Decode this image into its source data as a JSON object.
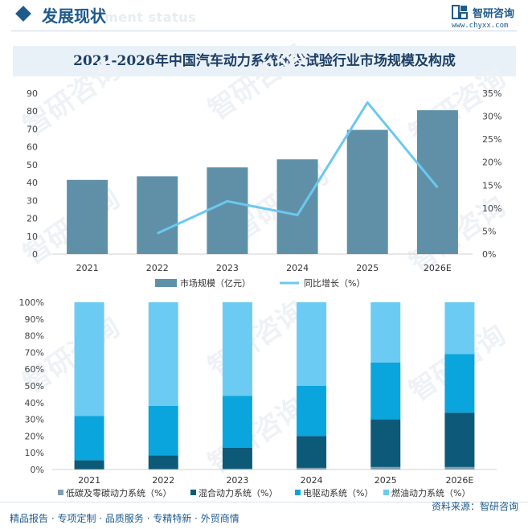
{
  "header": {
    "title": "发展现状",
    "ghost_subtitle": "ment status",
    "brand_name": "智研咨询",
    "brand_url": "www.chyxx.com"
  },
  "colors": {
    "bar": "#5f90a8",
    "line": "#6cc8ef",
    "low_carbon": "#7f9fb0",
    "hybrid": "#0d5a78",
    "electric": "#0aa5dc",
    "fuel": "#6ccbf2",
    "brand": "#1e5a8c"
  },
  "chart_data": [
    {
      "type": "bar",
      "title": "2021-2026年中国汽车动力系统研发试验行业市场规模及构成",
      "categories": [
        "2021",
        "2022",
        "2023",
        "2024",
        "2025",
        "2026E"
      ],
      "y_ticks": [
        "0",
        "10",
        "20",
        "30",
        "40",
        "50",
        "60",
        "70",
        "80",
        "90"
      ],
      "y2_ticks": [
        "0%",
        "5%",
        "10%",
        "15%",
        "20%",
        "25%",
        "30%",
        "35%"
      ],
      "ylim": [
        0,
        90
      ],
      "y2lim": [
        0,
        35
      ],
      "legend_position": "bottom",
      "series": [
        {
          "name": "市场规模（亿元）",
          "type": "bar",
          "values": [
            41.5,
            43.5,
            48.5,
            53,
            69.5,
            80.5
          ]
        },
        {
          "name": "同比增长（%）",
          "type": "line",
          "axis": "right",
          "values": [
            null,
            4.5,
            11.5,
            8.5,
            33,
            14.5
          ]
        }
      ]
    },
    {
      "type": "bar",
      "stacked": true,
      "categories": [
        "2021",
        "2022",
        "2023",
        "2024",
        "2025",
        "2026E"
      ],
      "y_ticks": [
        "0%",
        "10%",
        "20%",
        "30%",
        "40%",
        "50%",
        "60%",
        "70%",
        "80%",
        "90%",
        "100%"
      ],
      "ylim": [
        0,
        100
      ],
      "legend_position": "bottom",
      "series": [
        {
          "name": "低碳及零碳动力系统（%）",
          "values": [
            0.2,
            0.3,
            0.5,
            1,
            1.5,
            1.5
          ]
        },
        {
          "name": "混合动力系统（%）",
          "values": [
            5.3,
            8.2,
            12.5,
            19,
            28.5,
            32.5
          ]
        },
        {
          "name": "电驱动系统（%）",
          "values": [
            26.5,
            29.5,
            31,
            30,
            34,
            35
          ]
        },
        {
          "name": "燃油动力系统（%）",
          "values": [
            68,
            62,
            56,
            50,
            36,
            31
          ]
        }
      ]
    }
  ],
  "footer": {
    "left": "精品报告 · 专项定制 · 品质服务 · 专精特新 · 外贸商情",
    "right": "资料来源：智研咨询"
  },
  "watermark": "智研咨询"
}
